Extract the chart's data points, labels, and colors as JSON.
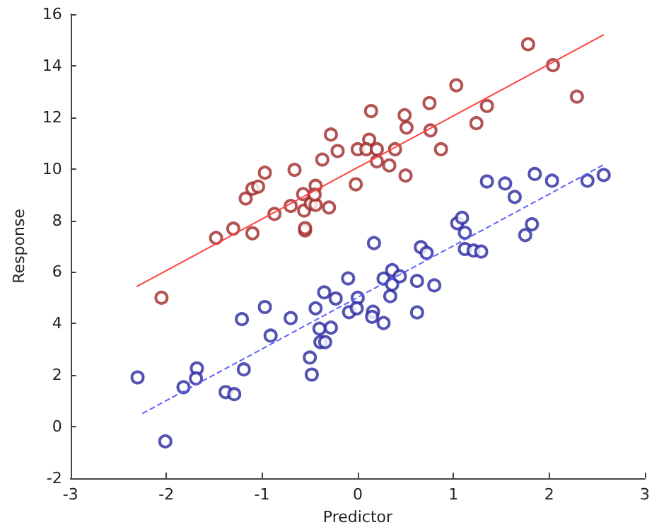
{
  "chart_data": {
    "type": "scatter",
    "xlabel": "Predictor",
    "ylabel": "Response",
    "xlim": [
      -3,
      3
    ],
    "ylim": [
      -2,
      16
    ],
    "xticks": [
      -3,
      -2,
      -1,
      0,
      1,
      2,
      3
    ],
    "yticks": [
      -2,
      0,
      2,
      4,
      6,
      8,
      10,
      12,
      14,
      16
    ],
    "grid": false,
    "marker": "circle",
    "series": [
      {
        "color": "#a02828",
        "x": [
          -2.05,
          -1.48,
          -1.3,
          -1.1,
          -1.17,
          -1.1,
          -1.04,
          -0.97,
          -0.87,
          -0.7,
          -0.66,
          -0.57,
          -0.56,
          -0.55,
          -0.55,
          -0.49,
          -0.44,
          -0.44,
          -0.45,
          -0.3,
          -0.37,
          -0.28,
          -0.21,
          -0.02,
          0.0,
          0.14,
          0.12,
          0.09,
          0.2,
          0.2,
          0.33,
          0.39,
          0.5,
          0.49,
          0.51,
          0.75,
          0.76,
          0.87,
          1.03,
          1.24,
          1.35,
          1.78,
          2.04,
          2.29
        ],
        "values": [
          5.0,
          7.32,
          7.68,
          7.5,
          8.85,
          9.23,
          9.31,
          9.85,
          8.25,
          8.56,
          9.96,
          9.02,
          8.38,
          7.61,
          7.7,
          8.65,
          9.34,
          8.6,
          9.0,
          8.5,
          10.36,
          11.33,
          10.69,
          9.4,
          10.76,
          12.24,
          11.13,
          10.76,
          10.76,
          10.29,
          10.13,
          10.76,
          9.74,
          12.08,
          11.6,
          12.55,
          11.49,
          10.76,
          13.24,
          11.77,
          12.44,
          14.83,
          14.02,
          12.8
        ]
      },
      {
        "color": "#2828a0",
        "x": [
          -2.3,
          -2.01,
          -1.82,
          -1.68,
          -1.69,
          -1.38,
          -1.29,
          -1.21,
          -1.19,
          -0.97,
          -0.91,
          -0.7,
          -0.5,
          -0.48,
          -0.44,
          -0.35,
          -0.4,
          -0.39,
          -0.34,
          -0.28,
          -0.23,
          -0.1,
          -0.09,
          0.0,
          -0.01,
          0.17,
          0.16,
          0.15,
          0.27,
          0.27,
          0.36,
          0.36,
          0.34,
          0.44,
          0.62,
          0.62,
          0.66,
          0.72,
          0.8,
          1.04,
          1.12,
          1.12,
          1.21,
          1.29,
          1.09,
          1.75,
          1.82,
          1.35,
          1.54,
          1.64,
          1.85,
          2.03,
          2.4,
          2.57
        ],
        "values": [
          1.91,
          -0.57,
          1.53,
          2.26,
          1.87,
          1.34,
          1.26,
          4.17,
          2.22,
          4.64,
          3.53,
          4.21,
          2.68,
          2.02,
          4.59,
          5.21,
          3.8,
          3.28,
          3.28,
          3.84,
          4.97,
          5.75,
          4.44,
          5.0,
          4.59,
          7.12,
          4.46,
          4.26,
          4.02,
          5.74,
          6.07,
          5.52,
          5.06,
          5.83,
          5.65,
          4.43,
          6.96,
          6.74,
          5.48,
          7.89,
          7.52,
          6.89,
          6.83,
          6.79,
          8.1,
          7.43,
          7.85,
          9.51,
          9.43,
          8.91,
          9.8,
          9.54,
          9.54,
          9.76
        ]
      },
      {
        "type": "line",
        "color": "#ff4040",
        "line_style": "solid",
        "marker": "none",
        "x": [
          -2.31,
          2.57
        ],
        "values": [
          5.43,
          15.2
        ]
      },
      {
        "type": "line",
        "color": "#6060ff",
        "line_style": "dashed",
        "marker": "none",
        "x": [
          -2.25,
          2.57
        ],
        "values": [
          0.51,
          10.16
        ]
      }
    ]
  }
}
